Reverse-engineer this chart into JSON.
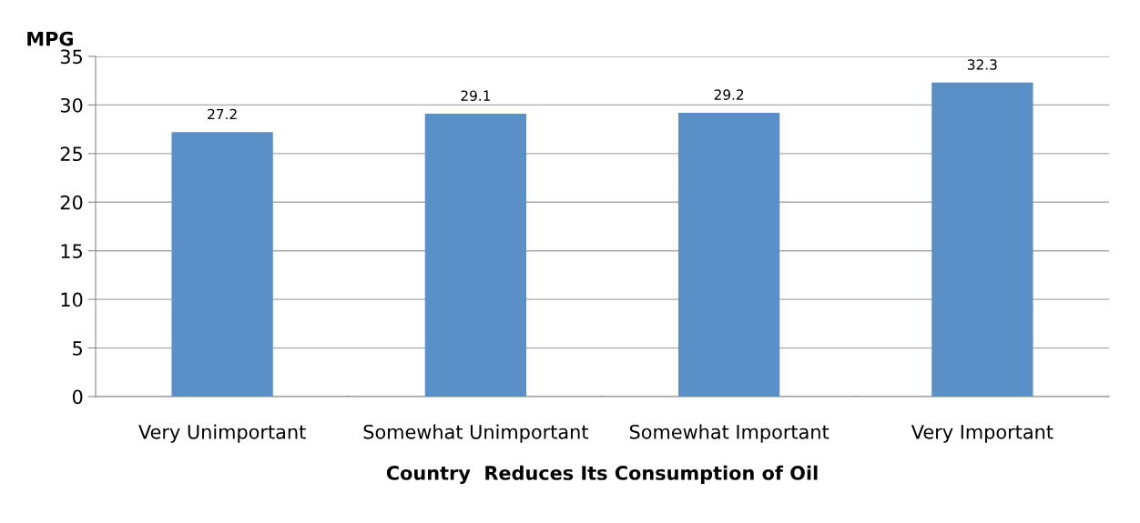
{
  "chart_data": {
    "type": "bar",
    "xlabel": "Country  Reduces Its Consumption of Oil",
    "ylabel": "MPG",
    "categories": [
      "Very Unimportant",
      "Somewhat Unimportant",
      "Somewhat Important",
      "Very Important"
    ],
    "values": [
      27.2,
      29.1,
      29.2,
      32.3
    ],
    "color": "#5b8fc7",
    "ylim": [
      0,
      35
    ],
    "yticks": [
      0,
      5,
      10,
      15,
      20,
      25,
      30,
      35
    ],
    "grid": "y",
    "data_labels": true,
    "legend": false
  }
}
